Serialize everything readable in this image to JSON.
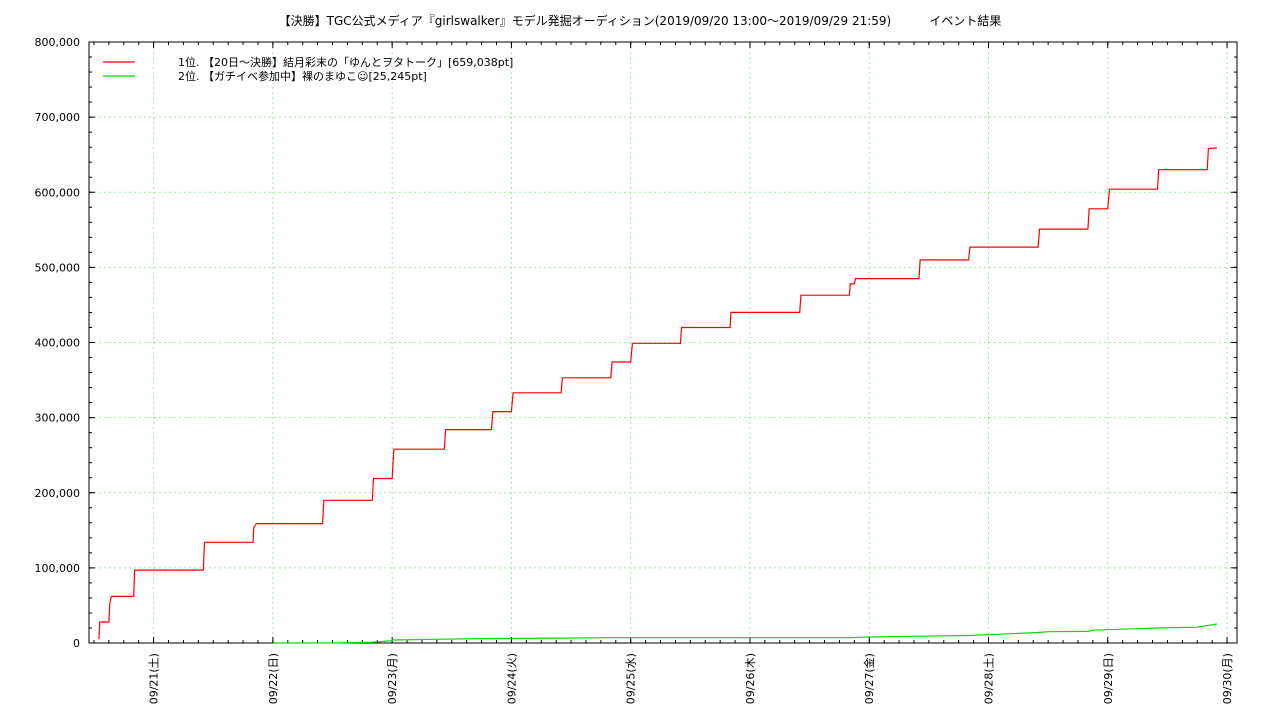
{
  "chart_data": {
    "type": "line",
    "title": "【決勝】TGC公式メディア『girlswalker』モデル発掘オーディション(2019/09/20 13:00～2019/09/29 21:59)          イベント結果",
    "xlabel": "",
    "ylabel": "",
    "ylim": [
      0,
      800000
    ],
    "yticks": [
      0,
      100000,
      200000,
      300000,
      400000,
      500000,
      600000,
      700000,
      800000
    ],
    "ytick_labels": [
      "0",
      "100,000",
      "200,000",
      "300,000",
      "400,000",
      "500,000",
      "600,000",
      "700,000",
      "800,000"
    ],
    "xlim": [
      "2019-09-20 11:00",
      "2019-09-30 02:00"
    ],
    "xticks": [
      "2019-09-21",
      "2019-09-22",
      "2019-09-23",
      "2019-09-24",
      "2019-09-25",
      "2019-09-26",
      "2019-09-27",
      "2019-09-28",
      "2019-09-29",
      "2019-09-30"
    ],
    "xtick_labels": [
      "09/21(土)",
      "09/22(日)",
      "09/23(月)",
      "09/24(火)",
      "09/25(水)",
      "09/26(木)",
      "09/27(金)",
      "09/28(土)",
      "09/29(日)",
      "09/30(月)"
    ],
    "grid": true,
    "legend": "top-left",
    "series": [
      {
        "name": "1位. 【20日～決勝】結月彩末の「ゆんとヲタトーク」[659,038pt]",
        "color": "#ff0000",
        "x": [
          "2019-09-20 13:00",
          "2019-09-20 13:10",
          "2019-09-20 15:00",
          "2019-09-20 15:10",
          "2019-09-20 15:30",
          "2019-09-20 20:00",
          "2019-09-20 20:10",
          "2019-09-21 10:00",
          "2019-09-21 10:15",
          "2019-09-21 20:00",
          "2019-09-21 20:10",
          "2019-09-21 20:40",
          "2019-09-22 10:00",
          "2019-09-22 10:15",
          "2019-09-22 20:00",
          "2019-09-22 20:15",
          "2019-09-22 21:30",
          "2019-09-23 00:00",
          "2019-09-23 00:20",
          "2019-09-23 10:30",
          "2019-09-23 10:45",
          "2019-09-23 20:00",
          "2019-09-23 20:15",
          "2019-09-23 21:30",
          "2019-09-24 00:00",
          "2019-09-24 00:20",
          "2019-09-24 10:00",
          "2019-09-24 10:15",
          "2019-09-24 20:00",
          "2019-09-24 20:15",
          "2019-09-24 21:30",
          "2019-09-25 00:00",
          "2019-09-25 00:20",
          "2019-09-25 10:00",
          "2019-09-25 10:15",
          "2019-09-25 20:00",
          "2019-09-25 20:10",
          "2019-09-26 10:00",
          "2019-09-26 10:15",
          "2019-09-26 20:00",
          "2019-09-26 20:10",
          "2019-09-26 21:00",
          "2019-09-26 21:15",
          "2019-09-27 10:00",
          "2019-09-27 10:15",
          "2019-09-27 20:00",
          "2019-09-27 20:15",
          "2019-09-28 10:00",
          "2019-09-28 10:15",
          "2019-09-28 20:00",
          "2019-09-28 20:15",
          "2019-09-29 00:00",
          "2019-09-29 00:20",
          "2019-09-29 10:00",
          "2019-09-29 10:15",
          "2019-09-29 20:00",
          "2019-09-29 20:15",
          "2019-09-29 21:59"
        ],
        "values": [
          5000,
          28000,
          28000,
          52000,
          62000,
          62000,
          97000,
          97000,
          134000,
          134000,
          154000,
          159000,
          159000,
          190000,
          190000,
          219000,
          219000,
          219000,
          258000,
          258000,
          284000,
          284000,
          308000,
          308000,
          308000,
          333000,
          333000,
          353000,
          353000,
          374000,
          374000,
          374000,
          399000,
          399000,
          420000,
          420000,
          440000,
          440000,
          463000,
          463000,
          478000,
          478000,
          485000,
          485000,
          510000,
          510000,
          527000,
          527000,
          551000,
          551000,
          578000,
          578000,
          604000,
          604000,
          630000,
          630000,
          658000,
          659038
        ]
      },
      {
        "name": "2位. 【ガチイベ参加中】裸のまゆこ☺[25,245pt]",
        "color": "#00dd00",
        "x": [
          "2019-09-22 00:00",
          "2019-09-22 12:00",
          "2019-09-22 20:00",
          "2019-09-22 23:59",
          "2019-09-23 00:00",
          "2019-09-23 10:00",
          "2019-09-23 20:00",
          "2019-09-24 10:00",
          "2019-09-24 20:00",
          "2019-09-25 10:00",
          "2019-09-26 00:00",
          "2019-09-26 20:00",
          "2019-09-27 00:00",
          "2019-09-27 10:00",
          "2019-09-27 20:00",
          "2019-09-28 00:00",
          "2019-09-28 10:00",
          "2019-09-28 12:00",
          "2019-09-28 20:00",
          "2019-09-28 21:00",
          "2019-09-29 10:00",
          "2019-09-29 18:00",
          "2019-09-29 21:59"
        ],
        "values": [
          0,
          0,
          1000,
          3000,
          4000,
          5000,
          6000,
          6500,
          7000,
          7000,
          7000,
          7000,
          8000,
          9000,
          10000,
          11000,
          14000,
          15000,
          15500,
          17000,
          20000,
          21000,
          25245
        ]
      }
    ]
  }
}
